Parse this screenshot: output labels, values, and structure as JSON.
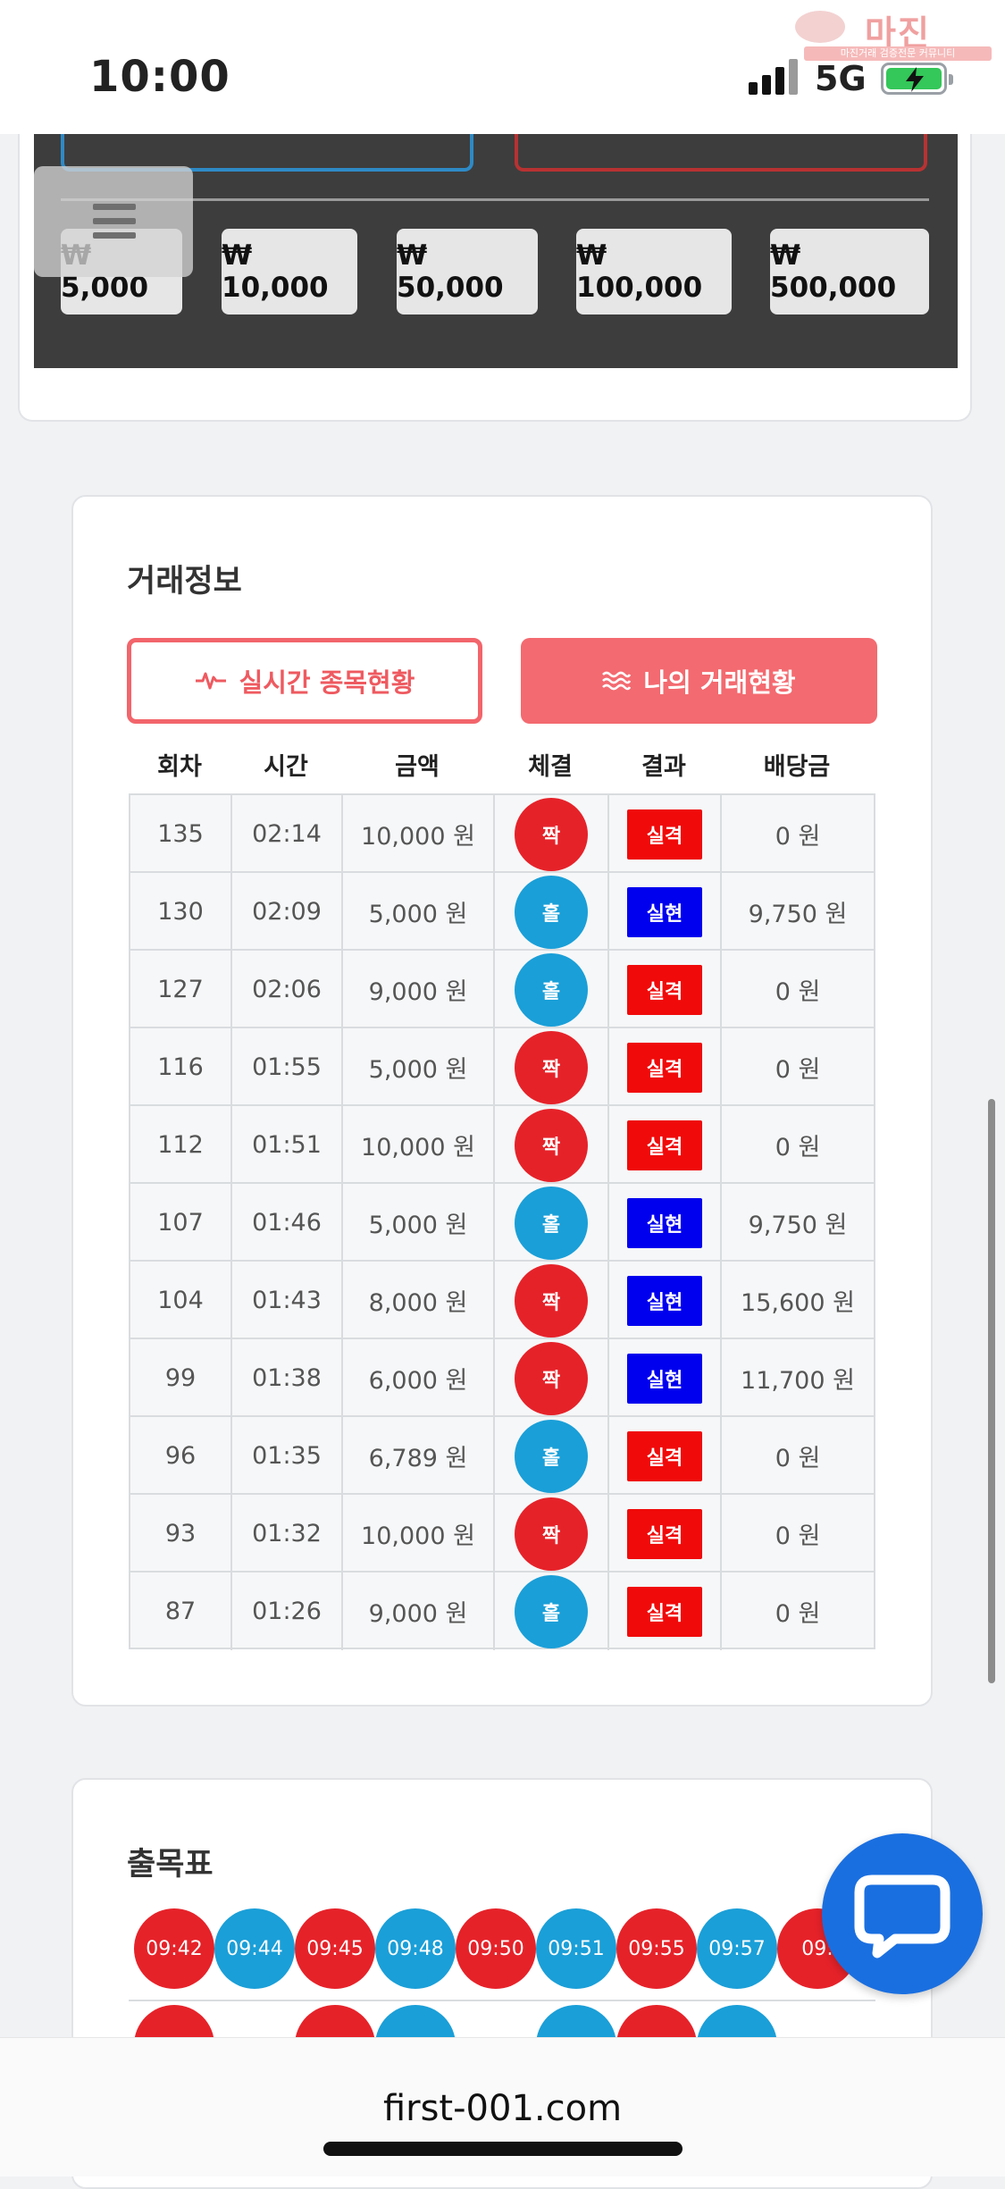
{
  "status_bar": {
    "time": "10:00",
    "network": "5G"
  },
  "watermark": {
    "word": "마진",
    "sub": "마진거래 검증전문 커뮤니티"
  },
  "bet_amounts": [
    "₩ 5,000",
    "₩ 10,000",
    "₩ 50,000",
    "₩ 100,000",
    "₩ 500,000"
  ],
  "trade_info": {
    "title": "거래정보",
    "tabs": [
      {
        "label": "실시간 종목현황",
        "icon": "pulse-icon"
      },
      {
        "label": "나의 거래현황",
        "icon": "waves-icon"
      }
    ],
    "columns": [
      "회차",
      "시간",
      "금액",
      "체결",
      "결과",
      "배당금"
    ],
    "rows": [
      {
        "round": "135",
        "time": "02:14",
        "amount": "10,000 원",
        "pick": "짝",
        "result": "실격",
        "payout": "0 원"
      },
      {
        "round": "130",
        "time": "02:09",
        "amount": "5,000 원",
        "pick": "홀",
        "result": "실현",
        "payout": "9,750 원"
      },
      {
        "round": "127",
        "time": "02:06",
        "amount": "9,000 원",
        "pick": "홀",
        "result": "실격",
        "payout": "0 원"
      },
      {
        "round": "116",
        "time": "01:55",
        "amount": "5,000 원",
        "pick": "짝",
        "result": "실격",
        "payout": "0 원"
      },
      {
        "round": "112",
        "time": "01:51",
        "amount": "10,000 원",
        "pick": "짝",
        "result": "실격",
        "payout": "0 원"
      },
      {
        "round": "107",
        "time": "01:46",
        "amount": "5,000 원",
        "pick": "홀",
        "result": "실현",
        "payout": "9,750 원"
      },
      {
        "round": "104",
        "time": "01:43",
        "amount": "8,000 원",
        "pick": "짝",
        "result": "실현",
        "payout": "15,600 원"
      },
      {
        "round": "99",
        "time": "01:38",
        "amount": "6,000 원",
        "pick": "짝",
        "result": "실현",
        "payout": "11,700 원"
      },
      {
        "round": "96",
        "time": "01:35",
        "amount": "6,789 원",
        "pick": "홀",
        "result": "실격",
        "payout": "0 원"
      },
      {
        "round": "93",
        "time": "01:32",
        "amount": "10,000 원",
        "pick": "짝",
        "result": "실격",
        "payout": "0 원"
      },
      {
        "round": "87",
        "time": "01:26",
        "amount": "9,000 원",
        "pick": "홀",
        "result": "실격",
        "payout": "0 원"
      }
    ]
  },
  "chulmok": {
    "title": "출목표",
    "top_row": [
      {
        "time": "09:42",
        "color": "red"
      },
      {
        "time": "09:44",
        "color": "blue"
      },
      {
        "time": "09:45",
        "color": "red"
      },
      {
        "time": "09:48",
        "color": "blue"
      },
      {
        "time": "09:50",
        "color": "red"
      },
      {
        "time": "09:51",
        "color": "blue"
      },
      {
        "time": "09:55",
        "color": "red"
      },
      {
        "time": "09:57",
        "color": "blue"
      },
      {
        "time": "09:",
        "color": "red"
      }
    ],
    "second_row": [
      "red",
      "",
      "red",
      "blue",
      "",
      "blue",
      "red",
      "blue",
      ""
    ]
  },
  "colors": {
    "red": "#e62229",
    "blue": "#1a9fd8",
    "fail": "#f00a0a",
    "success": "#0000ee",
    "accent": "#f36a70"
  },
  "url": "first-001.com"
}
